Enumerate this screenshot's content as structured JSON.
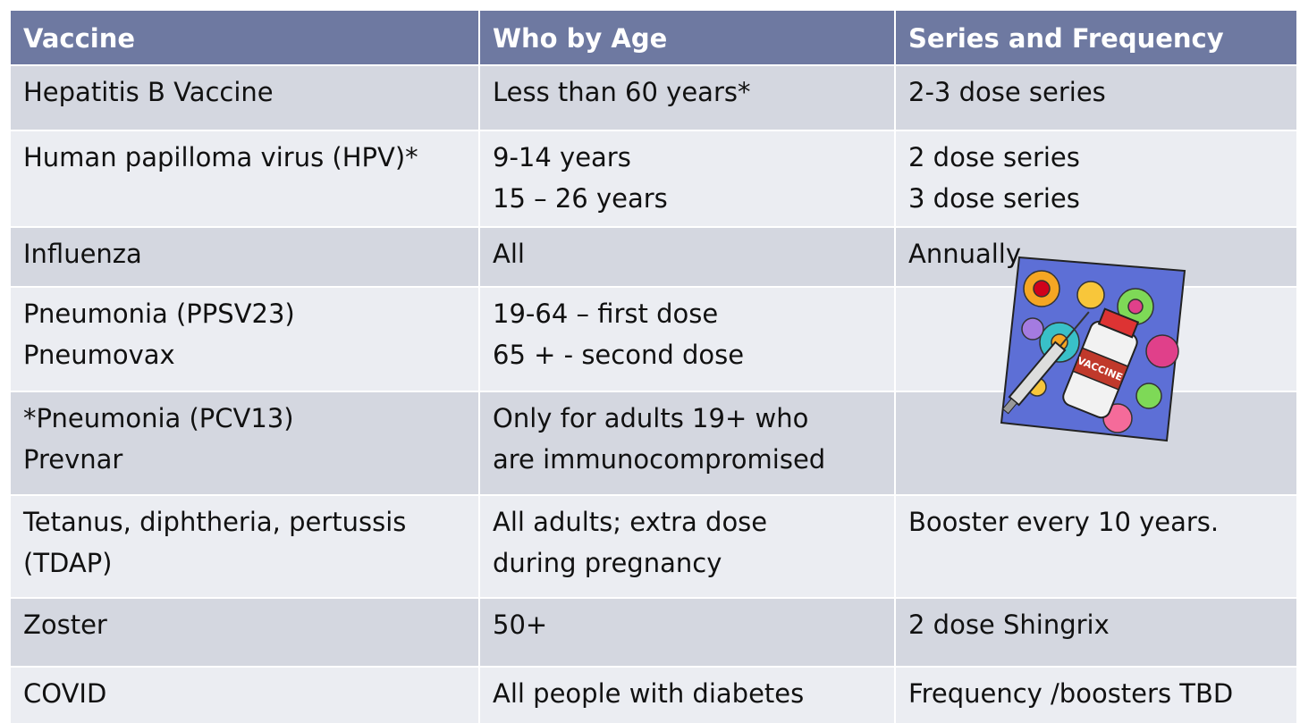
{
  "table": {
    "header": [
      "Vaccine",
      "Who by Age",
      "Series and Frequency"
    ],
    "rows": [
      [
        [
          "Hepatitis B Vaccine"
        ],
        [
          "Less than 60 years*"
        ],
        [
          "2-3 dose series"
        ]
      ],
      [
        [
          "Human papilloma virus (HPV)*"
        ],
        [
          "9-14 years",
          "15 – 26 years"
        ],
        [
          "2 dose series",
          "3 dose series"
        ]
      ],
      [
        [
          "Influenza"
        ],
        [
          "All"
        ],
        [
          "Annually"
        ]
      ],
      [
        [
          "Pneumonia (PPSV23)",
          "Pneumovax"
        ],
        [
          "19-64 – first dose",
          "65 + - second dose"
        ],
        []
      ],
      [
        [
          "*Pneumonia (PCV13)",
          "Prevnar"
        ],
        [
          "Only for adults 19+ who",
          "are immunocompromised"
        ],
        []
      ],
      [
        [
          "Tetanus, diphtheria, pertussis",
          "(TDAP)"
        ],
        [
          "All adults; extra dose",
          "during pregnancy"
        ],
        [
          "Booster every 10 years."
        ]
      ],
      [
        [
          "Zoster"
        ],
        [
          "50+"
        ],
        [
          "2 dose Shingrix"
        ]
      ],
      [
        [
          "COVID"
        ],
        [
          "All people with diabetes"
        ],
        [
          "Frequency /boosters TBD"
        ]
      ]
    ]
  },
  "illustration": {
    "label": "VACCINE"
  }
}
